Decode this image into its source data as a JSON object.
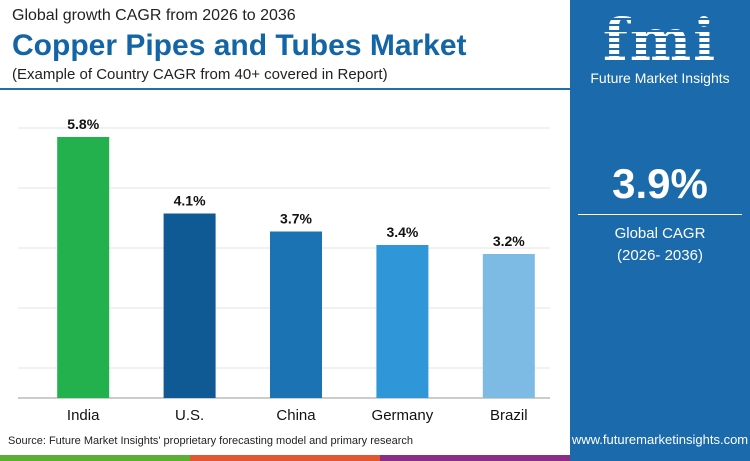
{
  "header": {
    "subtitle": "Global growth CAGR from 2026 to 2036",
    "title": "Copper Pipes and Tubes Market",
    "note": "(Example of Country CAGR from 40+ covered in Report)"
  },
  "logo": {
    "letters": "fmi",
    "name": "Future Market Insights"
  },
  "summary": {
    "value": "3.9%",
    "label1": "Global CAGR",
    "label2": "(2026- 2036)"
  },
  "footer": {
    "source": "Source: Future Market Insights' proprietary forecasting model and primary research",
    "url": "www.futuremarketinsights.com"
  },
  "colors": {
    "panel": "#1b6aab",
    "stripe": [
      "#5bb033",
      "#e4572e",
      "#8b2c86"
    ]
  },
  "chart_data": {
    "type": "bar",
    "categories": [
      "India",
      "U.S.",
      "China",
      "Germany",
      "Brazil"
    ],
    "values": [
      5.8,
      4.1,
      3.7,
      3.4,
      3.2
    ],
    "labels": [
      "5.8%",
      "4.1%",
      "3.7%",
      "3.4%",
      "3.2%"
    ],
    "colors": [
      "#22b14c",
      "#0f5a94",
      "#1b73b3",
      "#2f96d8",
      "#7dbbe5"
    ],
    "ylim": [
      0,
      6
    ],
    "grid": true
  }
}
